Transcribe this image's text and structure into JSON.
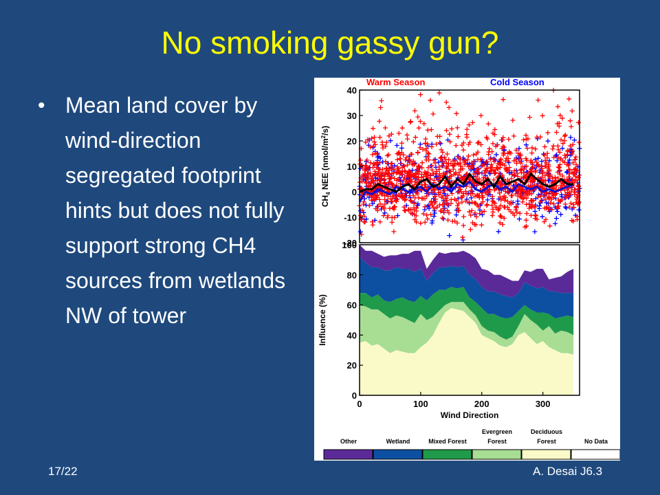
{
  "slide": {
    "title": "No smoking gassy gun?",
    "bullet": "Mean land cover by wind-direction segregated footprint hints but does not fully support strong CH4 sources from wetlands NW of tower",
    "slide_number": "17/22",
    "author": "A. Desai J6.3"
  },
  "colors": {
    "background": "#1f497d",
    "title": "#ffff00",
    "warm": "#ff0000",
    "cold": "#0000ff",
    "other": "#5b2a99",
    "wetland": "#0d4fa0",
    "mixed_forest": "#1f9a4a",
    "evergreen_forest": "#a8dd94",
    "deciduous_forest": "#fafac8",
    "no_data": "#ffffff"
  },
  "chart_data": [
    {
      "type": "scatter",
      "title": "",
      "series": [
        {
          "name": "Warm Season",
          "color": "#ff0000",
          "marker": "plus"
        },
        {
          "name": "Cold Season",
          "color": "#0000ff",
          "marker": "plus"
        }
      ],
      "mean_line": {
        "x": [
          0,
          10,
          20,
          30,
          40,
          50,
          60,
          70,
          80,
          90,
          100,
          110,
          120,
          130,
          140,
          150,
          160,
          170,
          180,
          190,
          200,
          210,
          220,
          230,
          240,
          250,
          260,
          270,
          280,
          290,
          300,
          310,
          320,
          330,
          340,
          350
        ],
        "warm": [
          0,
          1,
          1,
          3,
          2,
          1,
          0,
          2,
          3,
          1,
          4,
          5,
          2,
          3,
          6,
          2,
          5,
          3,
          7,
          4,
          3,
          5,
          2,
          6,
          3,
          4,
          5,
          3,
          7,
          5,
          3,
          2,
          3,
          5,
          3,
          3
        ],
        "cold": [
          -4,
          0,
          -1,
          1,
          0,
          -1,
          2,
          1,
          0,
          1,
          2,
          0,
          3,
          1,
          2,
          0,
          3,
          2,
          4,
          1,
          0,
          2,
          3,
          1,
          2,
          0,
          3,
          2,
          1,
          2,
          0,
          1,
          0,
          1,
          2,
          3
        ]
      },
      "xlim": [
        0,
        360
      ],
      "ylabel": "CH4 NEE (nmol/m2/s)",
      "ylim": [
        -20,
        40
      ],
      "yticks": [
        -20,
        -10,
        0,
        10,
        20,
        30,
        40
      ]
    },
    {
      "type": "area",
      "stacked": true,
      "x": [
        0,
        10,
        20,
        30,
        40,
        50,
        60,
        70,
        80,
        90,
        100,
        110,
        120,
        130,
        140,
        150,
        160,
        170,
        180,
        190,
        200,
        210,
        220,
        230,
        240,
        250,
        260,
        270,
        280,
        290,
        300,
        310,
        320,
        330,
        340,
        350
      ],
      "series": [
        {
          "name": "Deciduous Forest",
          "values": [
            35,
            36,
            33,
            34,
            31,
            28,
            30,
            29,
            28,
            28,
            32,
            35,
            40,
            48,
            55,
            58,
            57,
            56,
            52,
            48,
            40,
            38,
            36,
            33,
            32,
            34,
            40,
            42,
            38,
            34,
            36,
            32,
            30,
            28,
            28,
            27
          ]
        },
        {
          "name": "Evergreen Forest",
          "values": [
            25,
            23,
            24,
            23,
            23,
            23,
            23,
            23,
            22,
            20,
            22,
            15,
            12,
            8,
            5,
            4,
            5,
            6,
            5,
            5,
            6,
            5,
            6,
            6,
            5,
            5,
            6,
            12,
            12,
            13,
            7,
            14,
            11,
            15,
            14,
            13
          ]
        },
        {
          "name": "Mixed Forest",
          "values": [
            8,
            9,
            8,
            10,
            9,
            11,
            11,
            13,
            13,
            14,
            12,
            13,
            15,
            14,
            10,
            10,
            9,
            10,
            8,
            9,
            12,
            11,
            12,
            13,
            14,
            13,
            10,
            6,
            7,
            8,
            12,
            8,
            10,
            9,
            11,
            12
          ]
        },
        {
          "name": "Wetland",
          "values": [
            24,
            20,
            20,
            18,
            20,
            21,
            21,
            19,
            21,
            20,
            18,
            13,
            14,
            15,
            15,
            14,
            14,
            14,
            15,
            15,
            14,
            15,
            15,
            15,
            15,
            13,
            12,
            15,
            16,
            16,
            17,
            15,
            18,
            16,
            15,
            16
          ]
        },
        {
          "name": "Other",
          "values": [
            8,
            8,
            11,
            9,
            9,
            10,
            8,
            10,
            10,
            14,
            12,
            8,
            9,
            10,
            9,
            9,
            10,
            10,
            14,
            14,
            12,
            14,
            11,
            13,
            12,
            11,
            8,
            8,
            9,
            13,
            12,
            8,
            9,
            11,
            14,
            16
          ]
        }
      ],
      "xlabel": "Wind Direction",
      "ylabel": "Influence (%)",
      "xlim": [
        0,
        360
      ],
      "ylim": [
        0,
        100
      ],
      "xticks": [
        0,
        100,
        200,
        300
      ],
      "yticks": [
        0,
        20,
        40,
        60,
        80,
        100
      ]
    }
  ],
  "legend": [
    {
      "label": "Other",
      "color": "#5b2a99"
    },
    {
      "label": "Wetland",
      "color": "#0d4fa0"
    },
    {
      "label": "Mixed Forest",
      "color": "#1f9a4a"
    },
    {
      "label": "Evergreen Forest",
      "color": "#a8dd94"
    },
    {
      "label": "Deciduous Forest",
      "color": "#fafac8"
    },
    {
      "label": "No Data",
      "color": "#ffffff"
    }
  ]
}
